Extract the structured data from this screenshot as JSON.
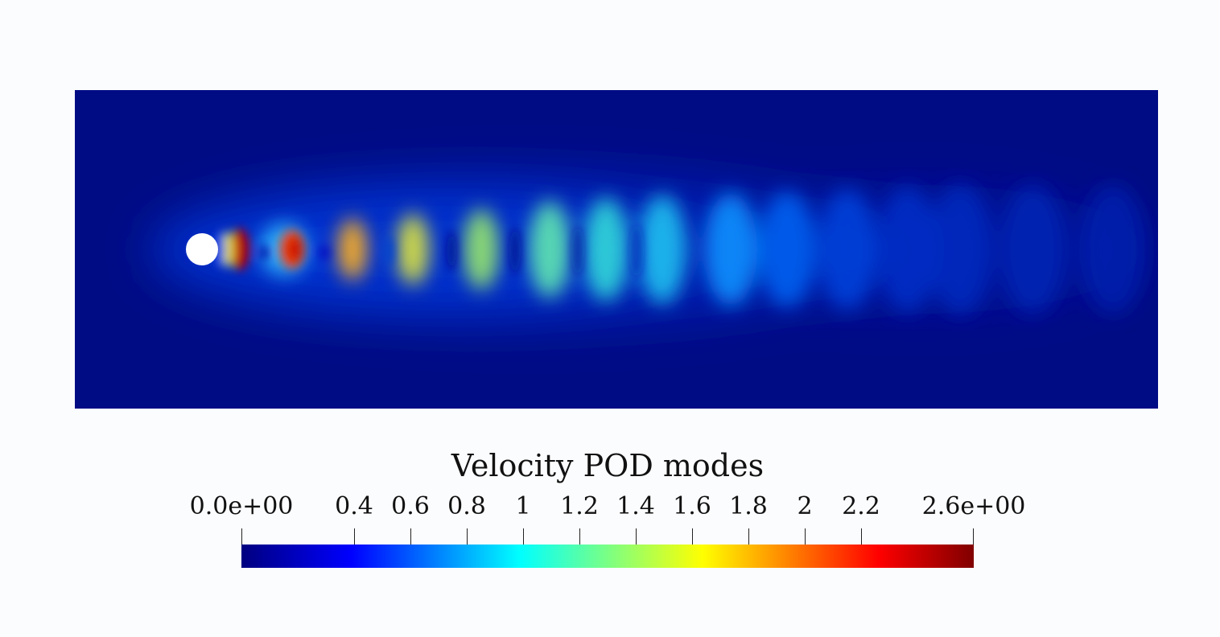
{
  "visualization": {
    "field": "velocity magnitude POD mode",
    "description_colormap": "jet",
    "colors": {
      "background": "#fbfcfe",
      "domain_base": "#000c84",
      "obstacle": "#ffffff"
    }
  },
  "legend": {
    "title": "Velocity POD modes",
    "range": [
      0,
      2.6
    ],
    "ticks": [
      {
        "value": 0.0,
        "label": "0.0e+00"
      },
      {
        "value": 0.4,
        "label": "0.4"
      },
      {
        "value": 0.6,
        "label": "0.6"
      },
      {
        "value": 0.8,
        "label": "0.8"
      },
      {
        "value": 1.0,
        "label": "1"
      },
      {
        "value": 1.2,
        "label": "1.2"
      },
      {
        "value": 1.4,
        "label": "1.4"
      },
      {
        "value": 1.6,
        "label": "1.6"
      },
      {
        "value": 1.8,
        "label": "1.8"
      },
      {
        "value": 2.0,
        "label": "2"
      },
      {
        "value": 2.2,
        "label": "2.2"
      },
      {
        "value": 2.6,
        "label": "2.6e+00"
      }
    ],
    "colormap": [
      "#000080",
      "#0000ff",
      "#00ffff",
      "#ffff00",
      "#ff0000",
      "#800000"
    ]
  }
}
